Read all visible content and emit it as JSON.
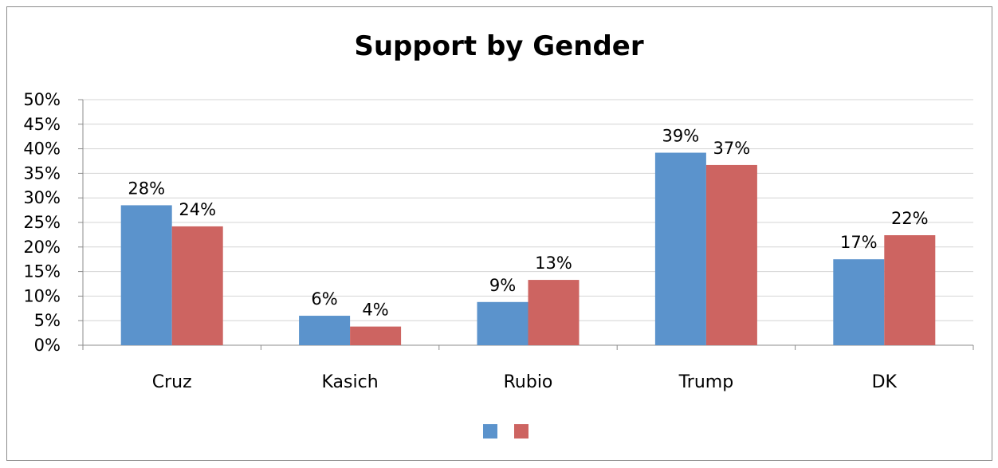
{
  "chart_data": {
    "type": "bar",
    "title": "Support by Gender",
    "xlabel": "",
    "ylabel": "",
    "ylim": [
      0,
      50
    ],
    "y_ticks": [
      "0%",
      "5%",
      "10%",
      "15%",
      "20%",
      "25%",
      "30%",
      "35%",
      "40%",
      "45%",
      "50%"
    ],
    "categories": [
      "Cruz",
      "Kasich",
      "Rubio",
      "Trump",
      "DK"
    ],
    "series": [
      {
        "color": "#5b93cc",
        "values": [
          28.5,
          6,
          8.8,
          39.2,
          17.5
        ],
        "labels": [
          "28%",
          "6%",
          "9%",
          "39%",
          "17%"
        ]
      },
      {
        "color": "#cd6461",
        "values": [
          24.2,
          3.8,
          13.3,
          36.7,
          22.4
        ],
        "labels": [
          "24%",
          "4%",
          "13%",
          "37%",
          "22%"
        ]
      }
    ],
    "grid": true,
    "legend": "bottom-center"
  }
}
